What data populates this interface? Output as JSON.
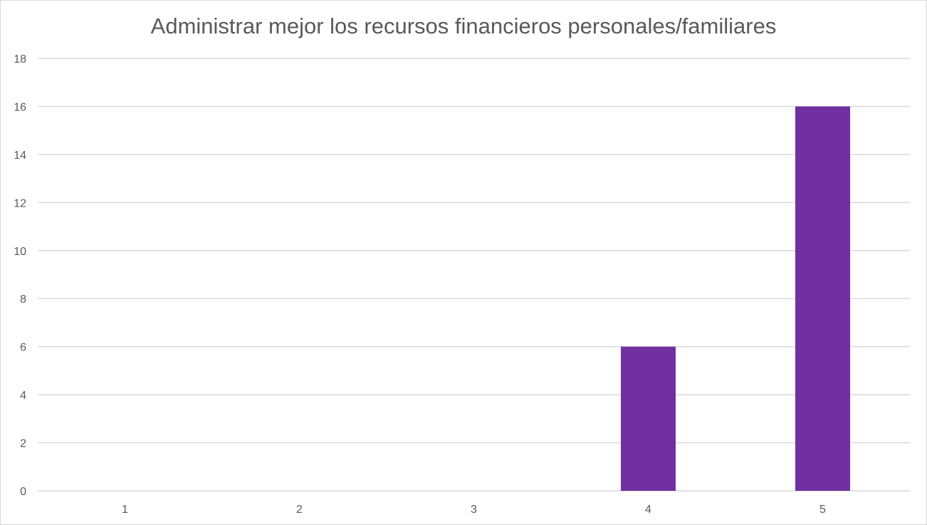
{
  "chart_data": {
    "type": "bar",
    "title": "Administrar mejor los recursos financieros personales/familiares",
    "xlabel": "",
    "ylabel": "",
    "categories": [
      "1",
      "2",
      "3",
      "4",
      "5"
    ],
    "values": [
      0,
      0,
      0,
      6,
      16
    ],
    "ylim": [
      0,
      18
    ],
    "yticks": [
      "0",
      "2",
      "4",
      "6",
      "8",
      "10",
      "12",
      "14",
      "16",
      "18"
    ],
    "grid": true,
    "legend": "none",
    "bar_color": "#7030a0",
    "grid_color": "#d9d9d9"
  }
}
